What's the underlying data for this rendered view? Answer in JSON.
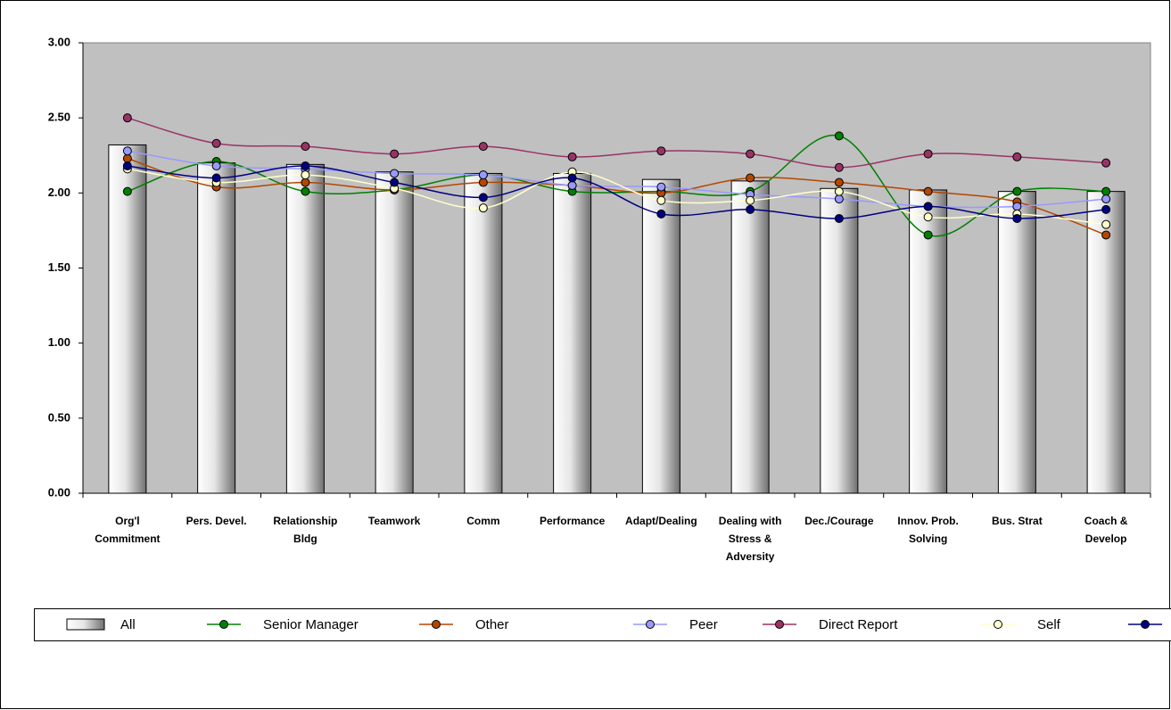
{
  "chart_data": {
    "type": "bar_line",
    "categories": [
      "Org'l Commitment",
      "Pers. Devel.",
      "Relationship Bldg",
      "Teamwork",
      "Comm",
      "Performance",
      "Adapt/Dealing",
      "Dealing with Stress & Adversity",
      "Dec./Courage",
      "Innov. Prob. Solving",
      "Bus. Strat",
      "Coach & Develop"
    ],
    "bar_series": {
      "name": "All",
      "color": "#808080",
      "values": [
        2.32,
        2.2,
        2.19,
        2.14,
        2.13,
        2.13,
        2.09,
        2.08,
        2.03,
        2.02,
        2.01,
        2.01
      ]
    },
    "series": [
      {
        "name": "Senior Manager",
        "color": "#008000",
        "values": [
          2.01,
          2.21,
          2.01,
          2.02,
          2.12,
          2.01,
          2.01,
          2.01,
          2.38,
          1.72,
          2.01,
          2.01
        ]
      },
      {
        "name": "Other",
        "color": "#b34700",
        "values": [
          2.23,
          2.04,
          2.07,
          2.02,
          2.07,
          2.05,
          2.0,
          2.1,
          2.07,
          2.01,
          1.94,
          1.72
        ]
      },
      {
        "name": "Peer",
        "color": "#9999ff",
        "values": [
          2.28,
          2.18,
          2.16,
          2.13,
          2.12,
          2.05,
          2.04,
          1.99,
          1.96,
          1.91,
          1.91,
          1.96
        ]
      },
      {
        "name": "Direct Report",
        "color": "#993366",
        "values": [
          2.5,
          2.33,
          2.31,
          2.26,
          2.31,
          2.24,
          2.28,
          2.26,
          2.17,
          2.26,
          2.24,
          2.2
        ]
      },
      {
        "name": "Self",
        "color": "#ffffcc",
        "values": [
          2.16,
          2.07,
          2.12,
          2.03,
          1.9,
          2.14,
          1.95,
          1.95,
          2.01,
          1.84,
          1.86,
          1.79
        ]
      },
      {
        "color": "#000080",
        "values": [
          2.18,
          2.1,
          2.18,
          2.07,
          1.97,
          2.1,
          1.86,
          1.89,
          1.83,
          1.91,
          1.83,
          1.89
        ]
      }
    ],
    "ylim": [
      0,
      3
    ],
    "yticks": [
      {
        "value": 0,
        "label": "0.00"
      },
      {
        "value": 0.5,
        "label": "0.50"
      },
      {
        "value": 1,
        "label": "1.00"
      },
      {
        "value": 1.5,
        "label": "1.50"
      },
      {
        "value": 2,
        "label": "2.00"
      },
      {
        "value": 2.5,
        "label": "2.50"
      },
      {
        "value": 3,
        "label": "3.00"
      }
    ],
    "plot_background": "#c0c0c0"
  }
}
